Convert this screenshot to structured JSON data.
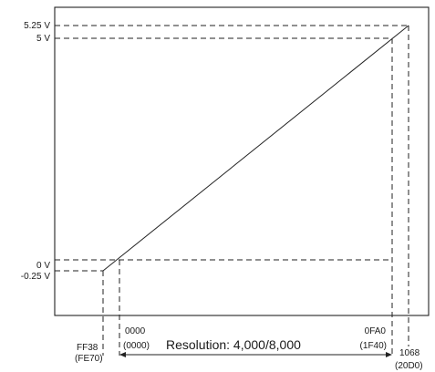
{
  "y_labels": {
    "v525": "5.25 V",
    "v5": "5 V",
    "v0": "0 V",
    "vneg": "-0.25 V"
  },
  "x_labels": {
    "ff38": "FF38",
    "fe70": "(FE70)",
    "z0000": "0000",
    "z0000b": "(0000)",
    "fa0": "0FA0",
    "f40": "(1F40)",
    "h1068": "1068",
    "h20d0": "(20D0)"
  },
  "resolution": "Resolution: 4,000/8,000"
}
